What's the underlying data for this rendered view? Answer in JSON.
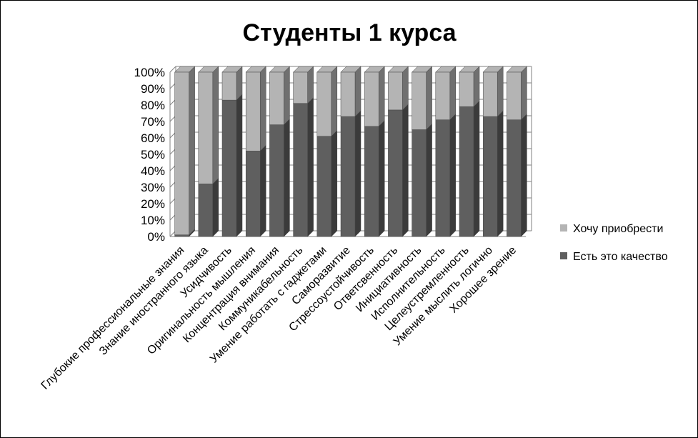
{
  "chart_data": {
    "type": "bar",
    "stacked": "percent",
    "title": "Студенты 1 курса",
    "categories": [
      "Глубокие профессиональные знания",
      "Знание иностранного языка",
      "Усидчивость",
      "Оригинальность мышления",
      "Концентрация внимания",
      "Коммуникабельность",
      "Умение работать с гаджетами",
      "Саморазвитие",
      "Стрессоустойчивость",
      "Ответсвенность",
      "Инициативность",
      "Исполнительность",
      "Целеустремленность",
      "Умение мыслить логично",
      "Хорошее зрение"
    ],
    "series": [
      {
        "name": "Есть это качество",
        "color": "#5f5f5f",
        "values": [
          1,
          32,
          83,
          52,
          68,
          81,
          61,
          73,
          67,
          77,
          65,
          71,
          79,
          73,
          71
        ]
      },
      {
        "name": "Хочу приобрести",
        "color": "#b4b4b4",
        "values": [
          99,
          68,
          17,
          48,
          32,
          19,
          39,
          27,
          33,
          23,
          35,
          29,
          21,
          27,
          29
        ]
      }
    ],
    "yticks": [
      "0%",
      "10%",
      "20%",
      "30%",
      "40%",
      "50%",
      "60%",
      "70%",
      "80%",
      "90%",
      "100%"
    ],
    "ylim": [
      0,
      100
    ],
    "grid": true,
    "legend_position": "right"
  }
}
